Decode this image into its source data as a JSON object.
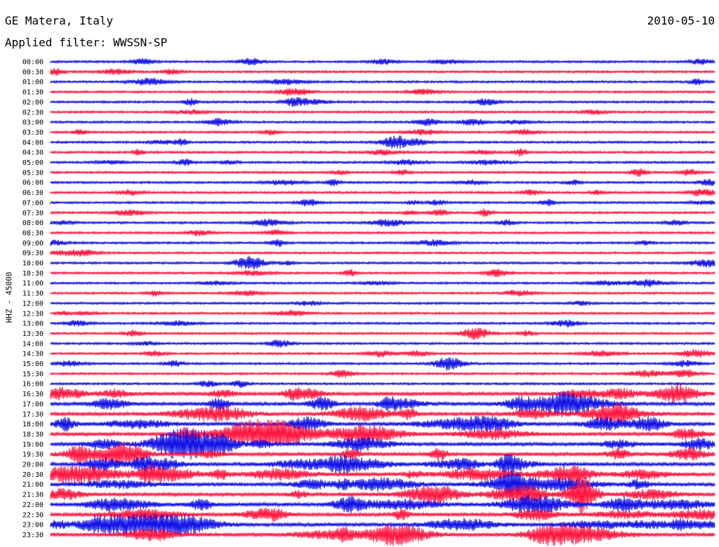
{
  "header": {
    "station": "GE Matera, Italy",
    "date": "2010-05-10",
    "filter": "Applied filter: WWSSN-SP"
  },
  "axis": {
    "ylabel": "HHZ - 45000"
  },
  "colors": {
    "odd": "#1212e6",
    "even": "#ff1740",
    "background": "#ffffff"
  },
  "chart_data": {
    "type": "line",
    "title": "GE Matera, Italy",
    "subtitle": "Applied filter: WWSSN-SP",
    "ylabel": "HHZ - 45000",
    "row_labels": [
      "00:00",
      "00:30",
      "01:00",
      "01:30",
      "02:00",
      "02:30",
      "03:00",
      "03:30",
      "04:00",
      "04:30",
      "05:00",
      "05:30",
      "06:00",
      "06:30",
      "07:00",
      "07:30",
      "08:00",
      "08:30",
      "09:00",
      "09:30",
      "10:00",
      "10:30",
      "11:00",
      "11:30",
      "12:00",
      "12:30",
      "13:00",
      "13:30",
      "14:00",
      "14:30",
      "15:00",
      "15:30",
      "16:00",
      "16:30",
      "17:00",
      "17:30",
      "18:00",
      "18:30",
      "19:00",
      "19:30",
      "20:00",
      "20:30",
      "21:00",
      "21:30",
      "22:00",
      "22:30",
      "23:00",
      "23:30"
    ],
    "row_colors": [
      "blue",
      "red"
    ],
    "events": [
      {
        "row": "04:00",
        "x": 0.52,
        "amp": 9
      },
      {
        "row": "10:00",
        "x": 0.3,
        "amp": 9
      },
      {
        "row": "13:30",
        "x": 0.64,
        "amp": 8
      },
      {
        "row": "15:00",
        "x": 0.6,
        "amp": 9
      },
      {
        "row": "21:30",
        "x": 0.8,
        "amp": 26
      }
    ]
  }
}
